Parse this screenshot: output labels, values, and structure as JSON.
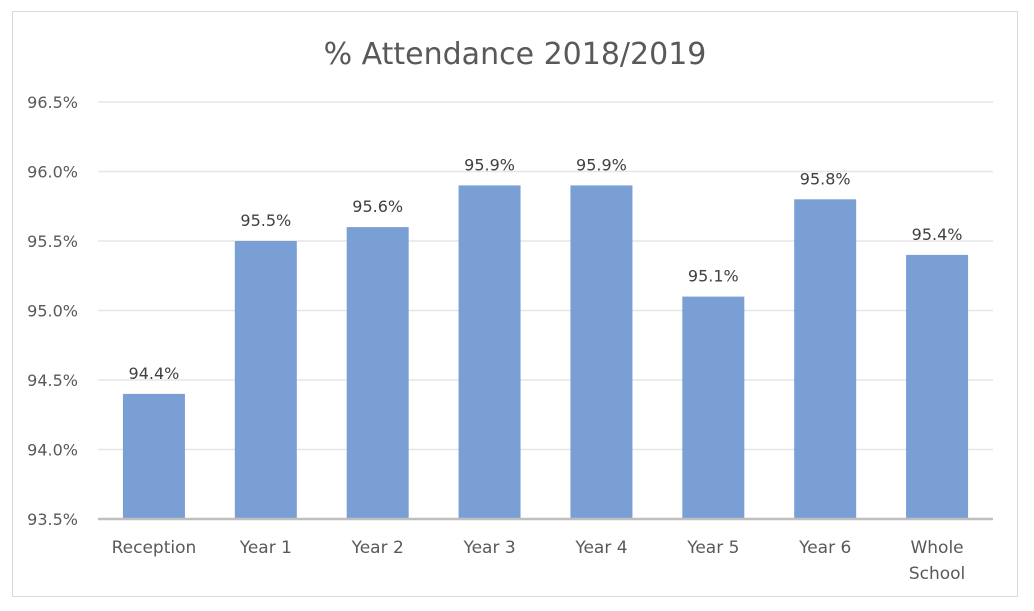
{
  "chart_data": {
    "type": "bar",
    "title": "% Attendance 2018/2019",
    "categories": [
      [
        "Reception"
      ],
      [
        "Year 1"
      ],
      [
        "Year 2"
      ],
      [
        "Year 3"
      ],
      [
        "Year 4"
      ],
      [
        "Year 5"
      ],
      [
        "Year 6"
      ],
      [
        "Whole",
        "School"
      ]
    ],
    "values": [
      94.4,
      95.5,
      95.6,
      95.9,
      95.9,
      95.1,
      95.8,
      95.4
    ],
    "data_labels": [
      "94.4%",
      "95.5%",
      "95.6%",
      "95.9%",
      "95.9%",
      "95.1%",
      "95.8%",
      "95.4%"
    ],
    "ylim": [
      93.5,
      96.5
    ],
    "y_ticks": [
      93.5,
      94.0,
      94.5,
      95.0,
      95.5,
      96.0,
      96.5
    ],
    "y_tick_labels": [
      "93.5%",
      "94.0%",
      "94.5%",
      "95.0%",
      "95.5%",
      "96.0%",
      "96.5%"
    ],
    "grid": true,
    "legend": "none",
    "bar_color": "#7a9fd4",
    "grid_color": "#e6e6e6",
    "axis_color": "#bfbfbf"
  }
}
